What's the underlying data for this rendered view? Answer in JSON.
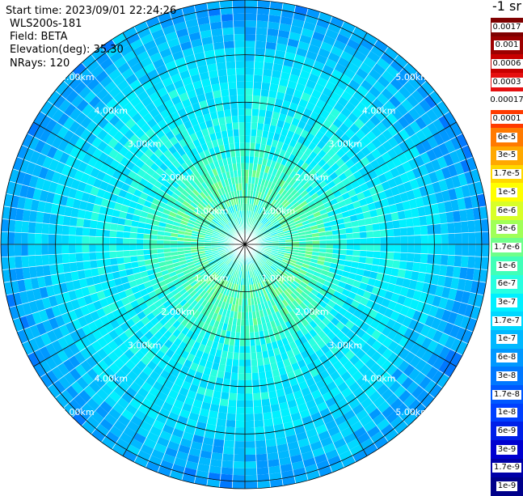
{
  "info": {
    "start_time": "Start time: 2023/09/01 22:24:26",
    "instrument": "WLS200s-181",
    "field": "Field: BETA",
    "elevation": "Elevation(deg): 35.30",
    "nrays": "NRays: 120"
  },
  "colorbar": {
    "unit": "-1 sr",
    "labels": [
      "0.0017",
      "0.001",
      "0.0006",
      "0.0003",
      "0.00017",
      "0.0001",
      "6e-5",
      "3e-5",
      "1.7e-5",
      "1e-5",
      "6e-6",
      "3e-6",
      "1.7e-6",
      "1e-6",
      "6e-7",
      "3e-7",
      "1.7e-7",
      "1e-7",
      "6e-8",
      "3e-8",
      "1.7e-8",
      "1e-8",
      "6e-9",
      "3e-9",
      "1.7e-9",
      "1e-9"
    ],
    "colors": [
      "#7f0000",
      "#9c0000",
      "#c80000",
      "#e61010",
      "#ffffff",
      "#ff3a00",
      "#ff7a00",
      "#ffa800",
      "#ffd800",
      "#ffff00",
      "#d8ff28",
      "#a0ff58",
      "#6eff8a",
      "#40ffb8",
      "#28ffe0",
      "#00f0ff",
      "#00d8ff",
      "#00b8ff",
      "#0098ff",
      "#0078ff",
      "#0058ff",
      "#0040ff",
      "#0020e8",
      "#0000d0",
      "#0000a8",
      "#00008a"
    ]
  },
  "chart_data": {
    "type": "heatmap",
    "projection": "polar (PPI scan)",
    "rays": 120,
    "range_rings_km": [
      1,
      2,
      3,
      4,
      5
    ],
    "ring_labels": [
      "1.00km",
      "2.00km",
      "3.00km",
      "4.00km",
      "5.00km"
    ],
    "radial_lines": 12,
    "max_range_km": 5.0,
    "range_bins": 36,
    "field": "BETA",
    "description_of_values": "backscatter ~1.7e-6 to 1e-5 near center (green), ~1e-7 to 3e-8 at mid ranges (cyan/light blue), ~1e-8 to 6e-9 at far ranges (blue)"
  }
}
